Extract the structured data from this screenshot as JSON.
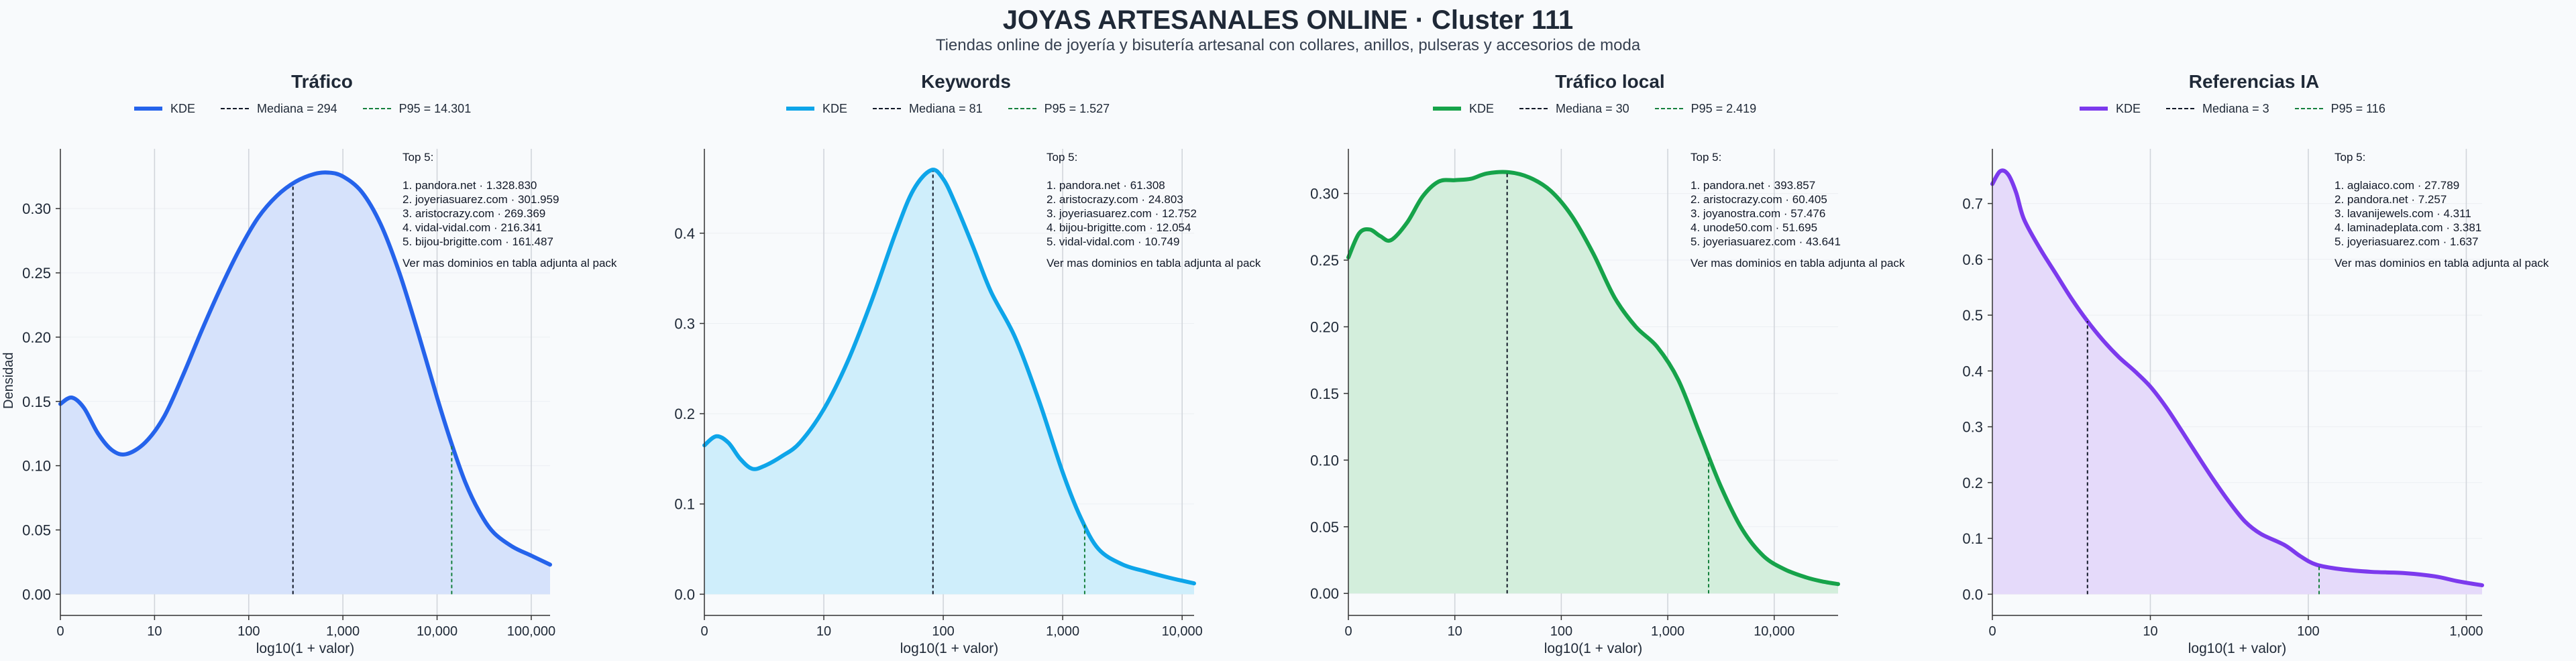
{
  "page": {
    "title": "JOYAS ARTESANALES ONLINE · Cluster 111",
    "subtitle": "Tiendas online de joyería y bisutería artesanal con collares, anillos, pulseras y accesorios de moda"
  },
  "chart_data": [
    {
      "type": "area",
      "title": "Tráfico",
      "xlabel": "log10(1 + valor)",
      "ylabel": "Densidad",
      "color": "#2563eb",
      "fill": "#d6e2fb",
      "x_scale": "log10(1+value)",
      "xlim": [
        0,
        5.2
      ],
      "ylim": [
        -0.0165,
        0.3465
      ],
      "x_ticks": [
        {
          "v": 0,
          "label": "0"
        },
        {
          "v": 1,
          "label": "10"
        },
        {
          "v": 2,
          "label": "100"
        },
        {
          "v": 3,
          "label": "1,000"
        },
        {
          "v": 4,
          "label": "10,000"
        },
        {
          "v": 5,
          "label": "100,000"
        }
      ],
      "y_ticks": [
        {
          "v": 0,
          "label": "0.00"
        },
        {
          "v": 0.05,
          "label": "0.05"
        },
        {
          "v": 0.1,
          "label": "0.10"
        },
        {
          "v": 0.15,
          "label": "0.15"
        },
        {
          "v": 0.2,
          "label": "0.20"
        },
        {
          "v": 0.25,
          "label": "0.25"
        },
        {
          "v": 0.3,
          "label": "0.30"
        }
      ],
      "legend": [
        "KDE",
        "Mediana = 294",
        "P95 = 14.301"
      ],
      "median": 294,
      "p95": 14301,
      "series": [
        {
          "name": "KDE",
          "points": [
            [
              0,
              0.148
            ],
            [
              0.12,
              0.153
            ],
            [
              0.25,
              0.145
            ],
            [
              0.4,
              0.125
            ],
            [
              0.55,
              0.112
            ],
            [
              0.7,
              0.109
            ],
            [
              0.9,
              0.118
            ],
            [
              1.1,
              0.138
            ],
            [
              1.3,
              0.17
            ],
            [
              1.5,
              0.205
            ],
            [
              1.7,
              0.238
            ],
            [
              1.9,
              0.268
            ],
            [
              2.1,
              0.293
            ],
            [
              2.3,
              0.31
            ],
            [
              2.5,
              0.321
            ],
            [
              2.7,
              0.327
            ],
            [
              2.85,
              0.328
            ],
            [
              3.0,
              0.325
            ],
            [
              3.2,
              0.313
            ],
            [
              3.4,
              0.288
            ],
            [
              3.6,
              0.25
            ],
            [
              3.8,
              0.203
            ],
            [
              4.0,
              0.153
            ],
            [
              4.15,
              0.118
            ],
            [
              4.3,
              0.087
            ],
            [
              4.45,
              0.064
            ],
            [
              4.6,
              0.048
            ],
            [
              4.8,
              0.037
            ],
            [
              5.0,
              0.03
            ],
            [
              5.2,
              0.023
            ]
          ]
        }
      ],
      "top5": {
        "heading": "Top 5:",
        "items": [
          "1. pandora.net · 1.328.830",
          "2. joyeriasuarez.com · 301.959",
          "3. aristocrazy.com · 269.369",
          "4. vidal-vidal.com · 216.341",
          "5. bijou-brigitte.com · 161.487"
        ],
        "footer": "Ver mas dominios en tabla adjunta al pack"
      }
    },
    {
      "type": "area",
      "title": "Keywords",
      "xlabel": "log10(1 + valor)",
      "ylabel": "",
      "color": "#0ea5e9",
      "fill": "#cfeefb",
      "x_scale": "log10(1+value)",
      "xlim": [
        0,
        4.1
      ],
      "ylim": [
        -0.0235,
        0.4935
      ],
      "x_ticks": [
        {
          "v": 0,
          "label": "0"
        },
        {
          "v": 1,
          "label": "10"
        },
        {
          "v": 2,
          "label": "100"
        },
        {
          "v": 3,
          "label": "1,000"
        },
        {
          "v": 4,
          "label": "10,000"
        }
      ],
      "y_ticks": [
        {
          "v": 0,
          "label": "0.0"
        },
        {
          "v": 0.1,
          "label": "0.1"
        },
        {
          "v": 0.2,
          "label": "0.2"
        },
        {
          "v": 0.3,
          "label": "0.3"
        },
        {
          "v": 0.4,
          "label": "0.4"
        }
      ],
      "legend": [
        "KDE",
        "Mediana = 81",
        "P95 = 1.527"
      ],
      "median": 81,
      "p95": 1527,
      "series": [
        {
          "name": "KDE",
          "points": [
            [
              0,
              0.165
            ],
            [
              0.1,
              0.175
            ],
            [
              0.2,
              0.168
            ],
            [
              0.3,
              0.15
            ],
            [
              0.4,
              0.139
            ],
            [
              0.5,
              0.142
            ],
            [
              0.65,
              0.153
            ],
            [
              0.8,
              0.168
            ],
            [
              1.0,
              0.205
            ],
            [
              1.2,
              0.258
            ],
            [
              1.4,
              0.325
            ],
            [
              1.6,
              0.4
            ],
            [
              1.75,
              0.448
            ],
            [
              1.9,
              0.47
            ],
            [
              2.0,
              0.46
            ],
            [
              2.1,
              0.433
            ],
            [
              2.25,
              0.385
            ],
            [
              2.4,
              0.335
            ],
            [
              2.6,
              0.285
            ],
            [
              2.8,
              0.215
            ],
            [
              3.0,
              0.135
            ],
            [
              3.15,
              0.085
            ],
            [
              3.3,
              0.05
            ],
            [
              3.5,
              0.033
            ],
            [
              3.7,
              0.025
            ],
            [
              3.9,
              0.018
            ],
            [
              4.0,
              0.015
            ],
            [
              4.1,
              0.012
            ]
          ]
        }
      ],
      "top5": {
        "heading": "Top 5:",
        "items": [
          "1. pandora.net · 61.308",
          "2. aristocrazy.com · 24.803",
          "3. joyeriasuarez.com · 12.752",
          "4. bijou-brigitte.com · 12.054",
          "5. vidal-vidal.com · 10.749"
        ],
        "footer": "Ver mas dominios en tabla adjunta al pack"
      }
    },
    {
      "type": "area",
      "title": "Tráfico local",
      "xlabel": "log10(1 + valor)",
      "ylabel": "",
      "color": "#16a34a",
      "fill": "#d3eedc",
      "x_scale": "log10(1+value)",
      "xlim": [
        0,
        4.6
      ],
      "ylim": [
        -0.0165,
        0.3335
      ],
      "x_ticks": [
        {
          "v": 0,
          "label": "0"
        },
        {
          "v": 1,
          "label": "10"
        },
        {
          "v": 2,
          "label": "100"
        },
        {
          "v": 3,
          "label": "1,000"
        },
        {
          "v": 4,
          "label": "10,000"
        }
      ],
      "y_ticks": [
        {
          "v": 0,
          "label": "0.00"
        },
        {
          "v": 0.05,
          "label": "0.05"
        },
        {
          "v": 0.1,
          "label": "0.10"
        },
        {
          "v": 0.15,
          "label": "0.15"
        },
        {
          "v": 0.2,
          "label": "0.20"
        },
        {
          "v": 0.25,
          "label": "0.25"
        },
        {
          "v": 0.3,
          "label": "0.30"
        }
      ],
      "legend": [
        "KDE",
        "Mediana = 30",
        "P95 = 2.419"
      ],
      "median": 30,
      "p95": 2419,
      "series": [
        {
          "name": "KDE",
          "points": [
            [
              0,
              0.252
            ],
            [
              0.1,
              0.27
            ],
            [
              0.2,
              0.273
            ],
            [
              0.3,
              0.268
            ],
            [
              0.4,
              0.265
            ],
            [
              0.55,
              0.278
            ],
            [
              0.7,
              0.298
            ],
            [
              0.85,
              0.309
            ],
            [
              1.0,
              0.31
            ],
            [
              1.15,
              0.311
            ],
            [
              1.3,
              0.315
            ],
            [
              1.5,
              0.316
            ],
            [
              1.7,
              0.312
            ],
            [
              1.9,
              0.302
            ],
            [
              2.1,
              0.283
            ],
            [
              2.3,
              0.255
            ],
            [
              2.5,
              0.222
            ],
            [
              2.7,
              0.2
            ],
            [
              2.9,
              0.185
            ],
            [
              3.1,
              0.16
            ],
            [
              3.3,
              0.12
            ],
            [
              3.5,
              0.08
            ],
            [
              3.7,
              0.048
            ],
            [
              3.9,
              0.028
            ],
            [
              4.1,
              0.018
            ],
            [
              4.3,
              0.012
            ],
            [
              4.45,
              0.009
            ],
            [
              4.6,
              0.007
            ]
          ]
        }
      ],
      "top5": {
        "heading": "Top 5:",
        "items": [
          "1. pandora.net · 393.857",
          "2. aristocrazy.com · 60.405",
          "3. joyanostra.com · 57.476",
          "4. unode50.com · 51.695",
          "5. joyeriasuarez.com · 43.641"
        ],
        "footer": "Ver mas dominios en tabla adjunta al pack"
      }
    },
    {
      "type": "area",
      "title": "Referencias IA",
      "xlabel": "log10(1 + valor)",
      "ylabel": "",
      "color": "#7c3aed",
      "fill": "#e5dafa",
      "x_scale": "log10(1+value)",
      "xlim": [
        0,
        3.1
      ],
      "ylim": [
        -0.038,
        0.798
      ],
      "x_ticks": [
        {
          "v": 0,
          "label": "0"
        },
        {
          "v": 1,
          "label": "10"
        },
        {
          "v": 2,
          "label": "100"
        },
        {
          "v": 3,
          "label": "1,000"
        }
      ],
      "y_ticks": [
        {
          "v": 0,
          "label": "0.0"
        },
        {
          "v": 0.1,
          "label": "0.1"
        },
        {
          "v": 0.2,
          "label": "0.2"
        },
        {
          "v": 0.3,
          "label": "0.3"
        },
        {
          "v": 0.4,
          "label": "0.4"
        },
        {
          "v": 0.5,
          "label": "0.5"
        },
        {
          "v": 0.6,
          "label": "0.6"
        },
        {
          "v": 0.7,
          "label": "0.7"
        }
      ],
      "legend": [
        "KDE",
        "Mediana = 3",
        "P95 = 116"
      ],
      "median": 3,
      "p95": 116,
      "series": [
        {
          "name": "KDE",
          "points": [
            [
              0,
              0.735
            ],
            [
              0.05,
              0.758
            ],
            [
              0.1,
              0.752
            ],
            [
              0.15,
              0.72
            ],
            [
              0.2,
              0.672
            ],
            [
              0.3,
              0.62
            ],
            [
              0.4,
              0.575
            ],
            [
              0.5,
              0.53
            ],
            [
              0.6,
              0.49
            ],
            [
              0.7,
              0.455
            ],
            [
              0.8,
              0.425
            ],
            [
              0.9,
              0.4
            ],
            [
              1.0,
              0.372
            ],
            [
              1.1,
              0.335
            ],
            [
              1.2,
              0.292
            ],
            [
              1.3,
              0.248
            ],
            [
              1.4,
              0.205
            ],
            [
              1.5,
              0.165
            ],
            [
              1.6,
              0.13
            ],
            [
              1.7,
              0.108
            ],
            [
              1.85,
              0.088
            ],
            [
              1.95,
              0.068
            ],
            [
              2.05,
              0.053
            ],
            [
              2.2,
              0.045
            ],
            [
              2.4,
              0.04
            ],
            [
              2.6,
              0.038
            ],
            [
              2.8,
              0.032
            ],
            [
              2.95,
              0.023
            ],
            [
              3.1,
              0.016
            ]
          ]
        }
      ],
      "top5": {
        "heading": "Top 5:",
        "items": [
          "1. aglaiaco.com · 27.789",
          "2. pandora.net · 7.257",
          "3. lavanijewels.com · 4.311",
          "4. laminadeplata.com · 3.381",
          "5. joyeriasuarez.com · 1.637"
        ],
        "footer": "Ver mas dominios en tabla adjunta al pack"
      }
    }
  ]
}
